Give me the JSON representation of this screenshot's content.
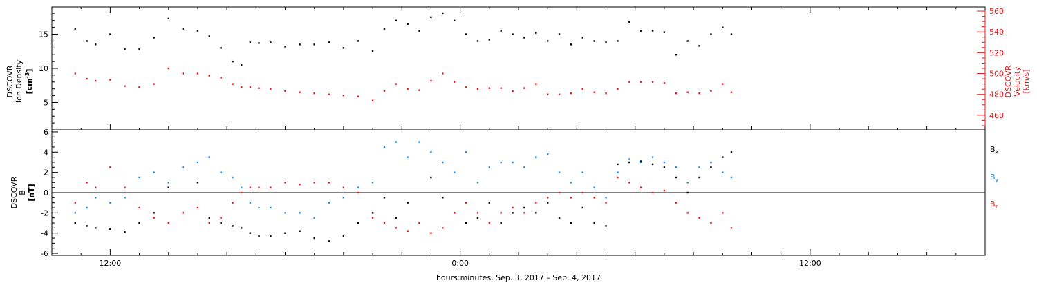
{
  "chart_data": [
    {
      "type": "scatter",
      "panel": "plasma",
      "ylabel_lines": [
        "DSCOVR",
        "Ion Density",
        "[cm^-3]"
      ],
      "ylabel_left_lines": [
        "DSCOVR",
        "Ion Density"
      ],
      "ylabel_left_unit": "[cm",
      "ylabel_left_unit_sup": "-3",
      "ylabel_left_unit_end": "]",
      "ylim": [
        1,
        19
      ],
      "yticks": [
        5,
        10,
        15
      ],
      "ytick_labels": [
        "5",
        "10",
        "15"
      ],
      "y2label_lines": [
        "DSCOVR",
        "Velocity",
        "[km/s]"
      ],
      "y2lim": [
        446,
        564
      ],
      "y2ticks": [
        460,
        480,
        500,
        520,
        540,
        560
      ],
      "y2tick_labels": [
        "460",
        "480",
        "500",
        "520",
        "540",
        "560"
      ],
      "series": [
        {
          "color": "#000000",
          "axis": "left",
          "x": [
            -13.2,
            -12.8,
            -12.5,
            -12.0,
            -11.5,
            -11.0,
            -10.5,
            -10.0,
            -9.5,
            -9.0,
            -8.6,
            -8.2,
            -7.8,
            -7.5,
            -7.2,
            -6.9,
            -6.5,
            -6.0,
            -5.5,
            -5.0,
            -4.5,
            -4.0,
            -3.5,
            -3.0,
            -2.6,
            -2.2,
            -1.8,
            -1.4,
            -1.0,
            -0.6,
            -0.2,
            0.2,
            0.6,
            1.0,
            1.4,
            1.8,
            2.2,
            2.6,
            3.0,
            3.4,
            3.8,
            4.2,
            4.6,
            5.0,
            5.4,
            5.8,
            6.2,
            6.6,
            7.0,
            7.4,
            7.8,
            8.2,
            8.6,
            9.0,
            9.3
          ],
          "y": [
            15.8,
            14.0,
            13.5,
            15.0,
            12.8,
            12.8,
            14.5,
            17.3,
            15.8,
            15.5,
            14.7,
            13.0,
            11.0,
            10.5,
            13.8,
            13.7,
            13.8,
            13.2,
            13.5,
            13.5,
            13.8,
            13.0,
            14.0,
            12.5,
            15.8,
            17.0,
            16.5,
            15.5,
            17.5,
            18.0,
            17.0,
            15.0,
            14.0,
            14.2,
            15.5,
            15.0,
            14.5,
            15.2,
            14.0,
            15.0,
            13.5,
            14.5,
            14.0,
            13.8,
            14.0,
            16.8,
            15.5,
            15.5,
            15.3,
            12.0,
            14.0,
            13.3,
            15.0,
            16.0,
            15.0
          ]
        },
        {
          "color": "#e41a1c",
          "axis": "right",
          "x": [
            -13.2,
            -12.8,
            -12.5,
            -12.0,
            -11.5,
            -11.0,
            -10.5,
            -10.0,
            -9.5,
            -9.0,
            -8.6,
            -8.2,
            -7.8,
            -7.5,
            -7.2,
            -6.9,
            -6.5,
            -6.0,
            -5.5,
            -5.0,
            -4.5,
            -4.0,
            -3.5,
            -3.0,
            -2.6,
            -2.2,
            -1.8,
            -1.4,
            -1.0,
            -0.6,
            -0.2,
            0.2,
            0.6,
            1.0,
            1.4,
            1.8,
            2.2,
            2.6,
            3.0,
            3.4,
            3.8,
            4.2,
            4.6,
            5.0,
            5.4,
            5.8,
            6.2,
            6.6,
            7.0,
            7.4,
            7.8,
            8.2,
            8.6,
            9.0,
            9.3
          ],
          "y": [
            500,
            495,
            493,
            494,
            488,
            487,
            490,
            505,
            500,
            500,
            498,
            496,
            490,
            487,
            487,
            486,
            485,
            483,
            482,
            481,
            480,
            479,
            478,
            474,
            483,
            490,
            485,
            484,
            493,
            500,
            492,
            487,
            485,
            486,
            486,
            483,
            486,
            490,
            480,
            480,
            481,
            485,
            482,
            481,
            485,
            492,
            492,
            492,
            491,
            481,
            482,
            481,
            483,
            490,
            482
          ]
        }
      ]
    },
    {
      "type": "scatter",
      "panel": "magnetic-field",
      "ylabel_lines": [
        "DSCOVR",
        "B",
        "[nT]"
      ],
      "ylim": [
        -6.2,
        6.2
      ],
      "yticks": [
        -6,
        -4,
        -2,
        0,
        2,
        4,
        6
      ],
      "ytick_labels": [
        "-6",
        "-4",
        "-2",
        "0",
        "2",
        "4",
        "6"
      ],
      "zero_line": 0,
      "legend_location": "right",
      "series": [
        {
          "name": "Bx",
          "color": "#000000",
          "x": [
            -13.2,
            -12.8,
            -12.5,
            -12.0,
            -11.5,
            -11.0,
            -10.5,
            -10.0,
            -9.5,
            -9.0,
            -8.6,
            -8.2,
            -7.8,
            -7.5,
            -7.2,
            -6.9,
            -6.5,
            -6.0,
            -5.5,
            -5.0,
            -4.5,
            -4.0,
            -3.5,
            -3.0,
            -2.6,
            -2.2,
            -1.8,
            -1.4,
            -1.0,
            -0.6,
            -0.2,
            0.2,
            0.6,
            1.0,
            1.4,
            1.8,
            2.2,
            2.6,
            3.0,
            3.4,
            3.8,
            4.2,
            4.6,
            5.0,
            5.4,
            5.8,
            6.2,
            6.6,
            7.0,
            7.4,
            7.8,
            8.2,
            8.6,
            9.0,
            9.3
          ],
          "y": [
            -3.0,
            -3.3,
            -3.5,
            -3.6,
            -3.9,
            -3.0,
            -2.0,
            0.5,
            2.5,
            1.0,
            -2.5,
            -3.0,
            -3.3,
            -3.5,
            -4.0,
            -4.3,
            -4.3,
            -4.0,
            -3.8,
            -4.5,
            -4.8,
            -4.3,
            -3.0,
            -2.0,
            -0.5,
            -2.5,
            -1.0,
            -3.0,
            1.5,
            -0.5,
            -2.0,
            -3.0,
            -2.5,
            -1.0,
            -3.0,
            -2.0,
            -1.5,
            -2.0,
            -1.0,
            -2.5,
            -3.0,
            -1.5,
            -3.0,
            -3.3,
            2.8,
            3.0,
            3.1,
            2.8,
            2.5,
            1.5,
            0.0,
            1.5,
            2.5,
            3.5,
            4.0
          ]
        },
        {
          "name": "By",
          "color": "#1e88e5",
          "x": [
            -13.2,
            -12.8,
            -12.5,
            -12.0,
            -11.5,
            -11.0,
            -10.5,
            -10.0,
            -9.5,
            -9.0,
            -8.6,
            -8.2,
            -7.8,
            -7.5,
            -7.2,
            -6.9,
            -6.5,
            -6.0,
            -5.5,
            -5.0,
            -4.5,
            -4.0,
            -3.5,
            -3.0,
            -2.6,
            -2.2,
            -1.8,
            -1.4,
            -1.0,
            -0.6,
            -0.2,
            0.2,
            0.6,
            1.0,
            1.4,
            1.8,
            2.2,
            2.6,
            3.0,
            3.4,
            3.8,
            4.2,
            4.6,
            5.0,
            5.4,
            5.8,
            6.2,
            6.6,
            7.0,
            7.4,
            7.8,
            8.2,
            8.6,
            9.0,
            9.3
          ],
          "y": [
            -2.0,
            -1.5,
            -0.5,
            -1.0,
            -0.5,
            1.5,
            2.0,
            1.0,
            2.5,
            3.0,
            3.5,
            2.0,
            1.5,
            0.5,
            -1.0,
            -1.5,
            -1.5,
            -2.0,
            -2.0,
            -2.5,
            -1.0,
            -0.5,
            0.5,
            1.0,
            4.5,
            5.0,
            3.5,
            5.0,
            4.0,
            3.0,
            2.0,
            4.0,
            1.0,
            2.5,
            3.0,
            3.0,
            2.5,
            3.5,
            3.8,
            2.0,
            1.0,
            2.0,
            0.5,
            -0.5,
            2.0,
            3.3,
            3.0,
            3.5,
            3.0,
            2.5,
            1.0,
            2.5,
            3.0,
            2.0,
            1.5
          ]
        },
        {
          "name": "Bz",
          "color": "#e41a1c",
          "x": [
            -13.2,
            -12.8,
            -12.5,
            -12.0,
            -11.5,
            -11.0,
            -10.5,
            -10.0,
            -9.5,
            -9.0,
            -8.6,
            -8.2,
            -7.8,
            -7.5,
            -7.2,
            -6.9,
            -6.5,
            -6.0,
            -5.5,
            -5.0,
            -4.5,
            -4.0,
            -3.5,
            -3.0,
            -2.6,
            -2.2,
            -1.8,
            -1.4,
            -1.0,
            -0.6,
            -0.2,
            0.2,
            0.6,
            1.0,
            1.4,
            1.8,
            2.2,
            2.6,
            3.0,
            3.4,
            3.8,
            4.2,
            4.6,
            5.0,
            5.4,
            5.8,
            6.2,
            6.6,
            7.0,
            7.4,
            7.8,
            8.2,
            8.6,
            9.0,
            9.3
          ],
          "y": [
            -1.0,
            1.0,
            0.5,
            2.5,
            0.5,
            -1.5,
            -2.5,
            -3.0,
            -2.0,
            -1.5,
            -3.0,
            -2.5,
            -1.0,
            0.0,
            0.5,
            0.5,
            0.5,
            1.0,
            0.8,
            1.0,
            1.0,
            0.5,
            0.0,
            -2.5,
            -3.0,
            -3.5,
            -3.8,
            -3.0,
            -4.0,
            -3.5,
            -2.0,
            -1.0,
            -2.0,
            -3.0,
            -2.0,
            -1.5,
            -2.0,
            -1.0,
            -0.5,
            0.0,
            -0.5,
            0.0,
            -0.5,
            -1.0,
            1.5,
            1.0,
            0.5,
            0.0,
            0.2,
            -1.0,
            -2.0,
            -2.5,
            -3.0,
            -2.0,
            -3.5
          ]
        }
      ]
    }
  ],
  "x_axis": {
    "xlim": [
      -14,
      18
    ],
    "tick_labels": [
      {
        "x": -12,
        "label": "12:00"
      },
      {
        "x": 0,
        "label": "0:00"
      },
      {
        "x": 12,
        "label": "12:00"
      }
    ],
    "minor_step": 1,
    "xlabel": "hours:minutes, Sep.  3, 2017 – Sep.  4, 2017"
  }
}
